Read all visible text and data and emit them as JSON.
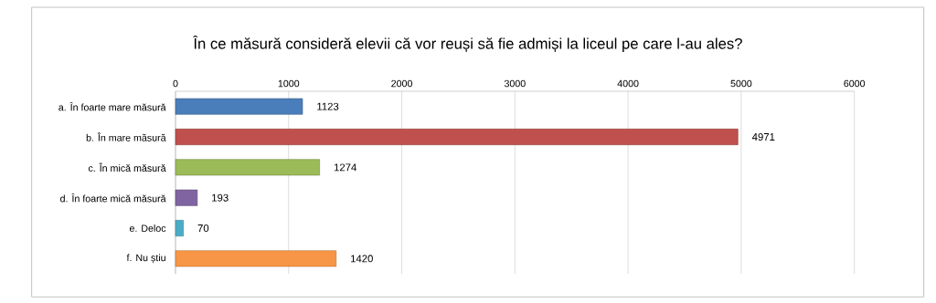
{
  "chart_data": {
    "type": "bar",
    "orientation": "horizontal",
    "title": "În ce măsură consideră elevii că vor reuși să fie admiși la liceul pe care l-au ales?",
    "categories": [
      "a. În foarte mare măsură",
      "b. În mare măsură",
      "c. În mică măsură",
      "d. În foarte mică măsură",
      "e. Deloc",
      "f. Nu știu"
    ],
    "values": [
      1123,
      4971,
      1274,
      193,
      70,
      1420
    ],
    "colors": [
      "#4a7ebb",
      "#c0504d",
      "#9bbb59",
      "#8064a2",
      "#4bacc6",
      "#f79646"
    ],
    "xlim": [
      0,
      6000
    ],
    "xticks": [
      0,
      1000,
      2000,
      3000,
      4000,
      5000,
      6000
    ],
    "grid": "x",
    "data_labels": true
  }
}
